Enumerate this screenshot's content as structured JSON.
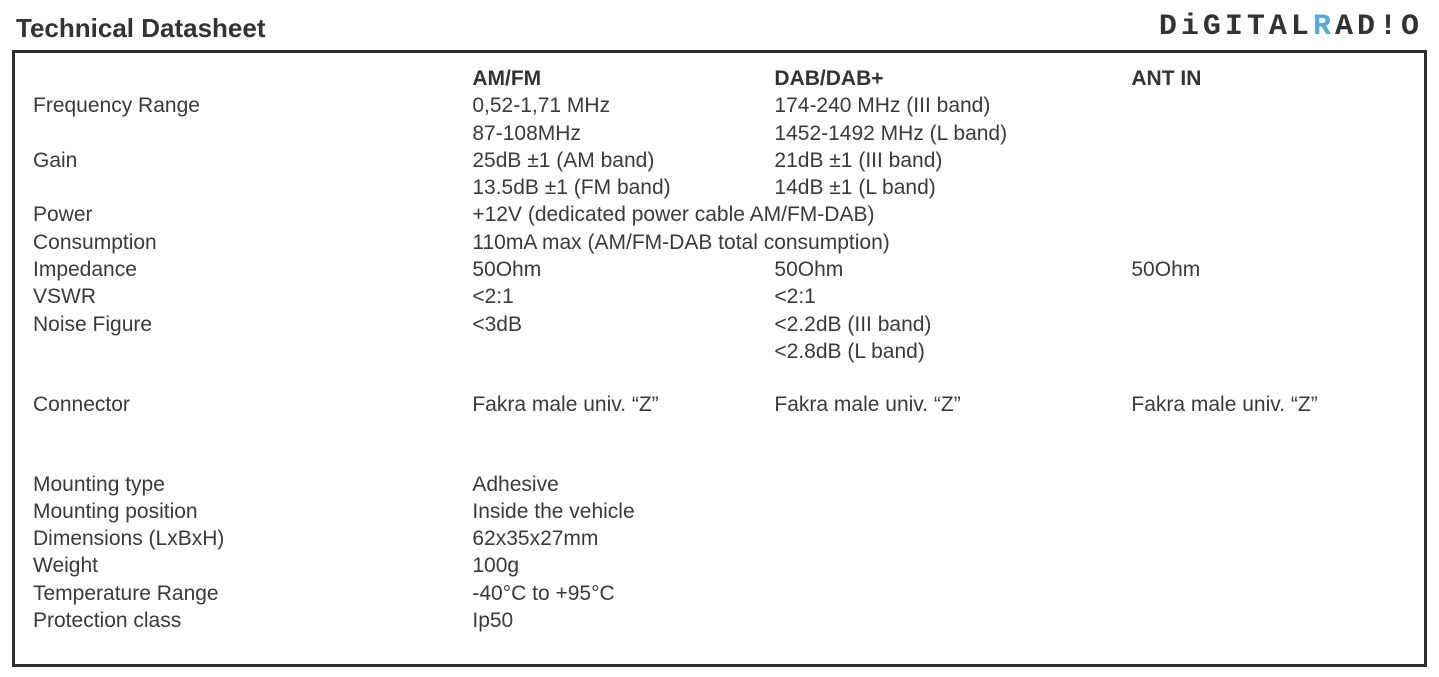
{
  "title": "Technical Datasheet",
  "logo": {
    "part1": "D",
    "dot1": "i",
    "part2": "GITAL",
    "blue": "R",
    "part3": "AD",
    "dot2": "!",
    "part4": "O"
  },
  "headers": {
    "col1": "AM/FM",
    "col2": "DAB/DAB+",
    "col3": "ANT IN"
  },
  "rows": {
    "freq_label": "Frequency Range",
    "freq_amfm_1": "0,52-1,71 MHz",
    "freq_amfm_2": "87-108MHz",
    "freq_dab_1": "174-240 MHz (III band)",
    "freq_dab_2": "1452-1492 MHz (L band)",
    "gain_label": "Gain",
    "gain_amfm_1": "25dB ±1 (AM band)",
    "gain_amfm_2": "13.5dB ±1 (FM band)",
    "gain_dab_1": "21dB ±1 (III band)",
    "gain_dab_2": "14dB ±1 (L band)",
    "power_label": "Power",
    "power_val": "+12V (dedicated power cable AM/FM-DAB)",
    "cons_label": "Consumption",
    "cons_val": "110mA max (AM/FM-DAB total consumption)",
    "imp_label": "Impedance",
    "imp_amfm": "50Ohm",
    "imp_dab": "50Ohm",
    "imp_ant": "50Ohm",
    "vswr_label": "VSWR",
    "vswr_amfm": "<2:1",
    "vswr_dab": "<2:1",
    "nf_label": "Noise Figure",
    "nf_amfm": "<3dB",
    "nf_dab_1": "<2.2dB (III band)",
    "nf_dab_2": "<2.8dB (L band)",
    "conn_label": "Connector",
    "conn_amfm": "Fakra male univ. “Z”",
    "conn_dab": "Fakra male univ. “Z”",
    "conn_ant": "Fakra male univ. “Z”",
    "mount_type_label": "Mounting type",
    "mount_type_val": "Adhesive",
    "mount_pos_label": "Mounting position",
    "mount_pos_val": "Inside the vehicle",
    "dim_label": "Dimensions (LxBxH)",
    "dim_val": "62x35x27mm",
    "weight_label": "Weight",
    "weight_val": "100g",
    "temp_label": "Temperature Range",
    "temp_val": "-40°C to +95°C",
    "prot_label": "Protection class",
    "prot_val": "Ip50"
  }
}
